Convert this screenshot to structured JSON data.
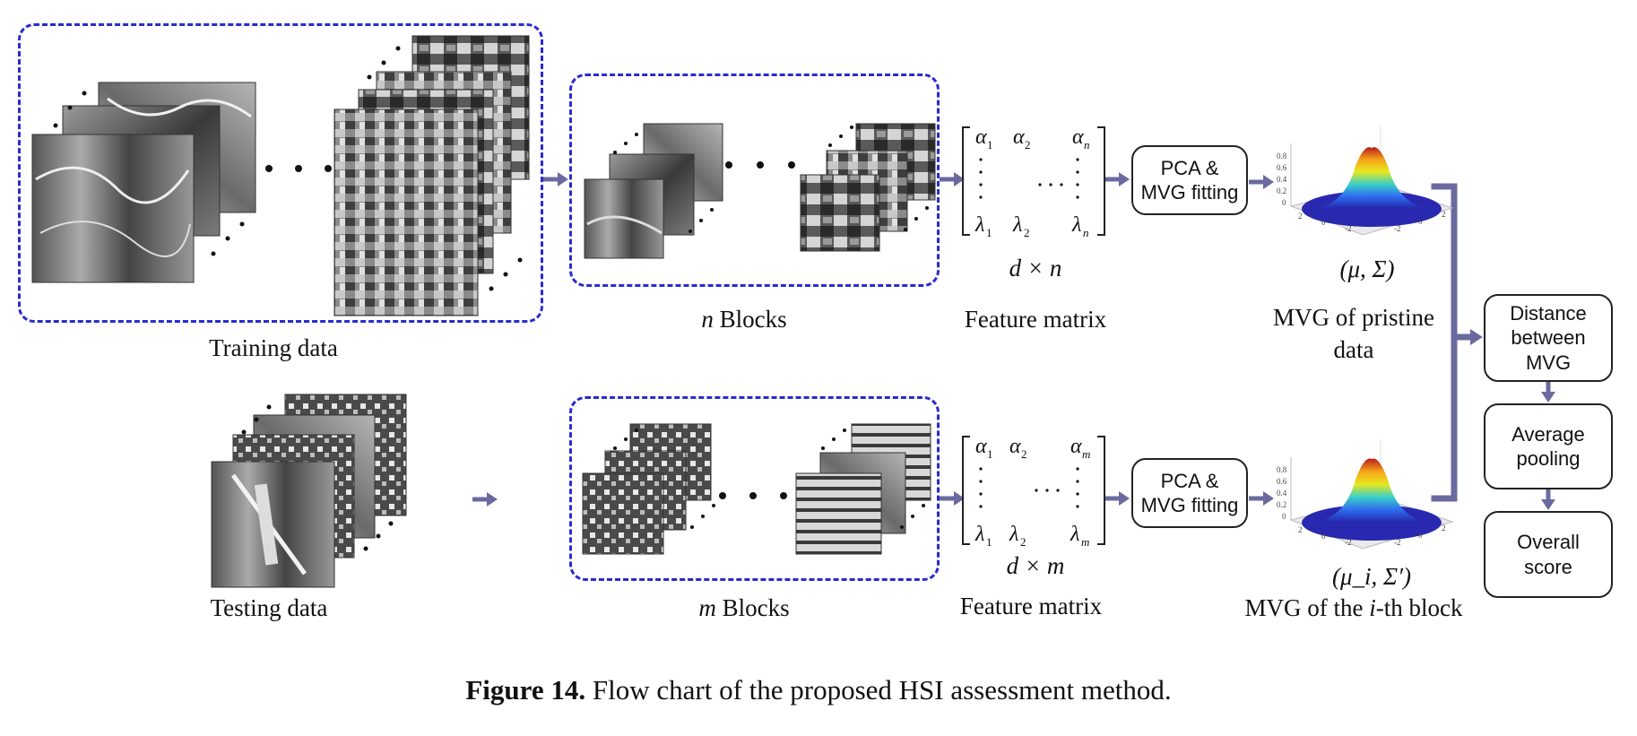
{
  "training_label": "Training data",
  "testing_label": "Testing data",
  "n_blocks_var": "n",
  "m_blocks_var": "m",
  "blocks_word": "Blocks",
  "top": {
    "feature_matrix_label": "Feature matrix",
    "dim_label": "d × n",
    "matrix": {
      "a1": "α",
      "a2": "α",
      "an": "α",
      "l1": "λ",
      "l2": "λ",
      "ln": "λ",
      "s1": "1",
      "s2": "2",
      "sn": "n"
    },
    "pca_label": "PCA &\nMVG fitting",
    "params_label": "(μ, Σ)",
    "mvg_label_line1": "MVG of pristine",
    "mvg_label_line2": "data"
  },
  "bottom": {
    "feature_matrix_label": "Feature matrix",
    "dim_label": "d × m",
    "matrix": {
      "a1": "α",
      "a2": "α",
      "am": "α",
      "l1": "λ",
      "l2": "λ",
      "lm": "λ",
      "s1": "1",
      "s2": "2",
      "sm": "m"
    },
    "pca_label": "PCA &\nMVG fitting",
    "params_label": "(μ_i, Σ′)",
    "mvg_label_pre": "MVG of the ",
    "mvg_label_var": "i",
    "mvg_label_post": "-th block"
  },
  "steps": {
    "distance": "Distance\nbetween\nMVG",
    "pooling": "Average\npooling",
    "score": "Overall\nscore"
  },
  "caption": {
    "prefix": "Figure 14.",
    "text": " Flow chart of the proposed HSI assessment method."
  },
  "colors": {
    "dashed_border": "#2a2ad0",
    "arrow": "#6a6aa0"
  },
  "icons": [
    "arrow-right-icon",
    "arrow-down-icon",
    "bracket-connector-icon",
    "gaussian-surface-icon",
    "ellipsis-dots-icon"
  ]
}
